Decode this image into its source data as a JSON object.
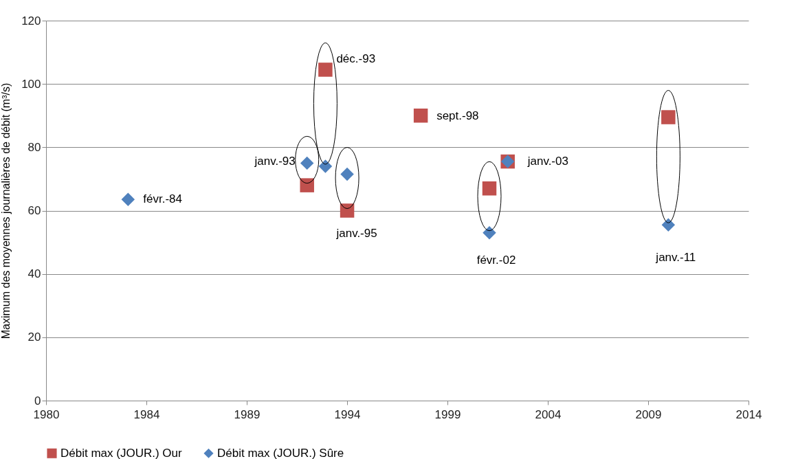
{
  "chart_data": {
    "type": "scatter",
    "ylabel": "Maximum des moyennes journalières de débit (m³/s)",
    "xlim": [
      "1980-01-01",
      "2014-12-30"
    ],
    "xticks": [
      {
        "value": "1980-01-01",
        "label": "1980"
      },
      {
        "value": "1984-12-31",
        "label": "1984"
      },
      {
        "value": "1989-12-31",
        "label": "1989"
      },
      {
        "value": "1994-12-31",
        "label": "1994"
      },
      {
        "value": "1999-12-31",
        "label": "1999"
      },
      {
        "value": "2004-12-30",
        "label": "2004"
      },
      {
        "value": "2009-12-30",
        "label": "2009"
      },
      {
        "value": "2014-12-30",
        "label": "2014"
      }
    ],
    "ylim": [
      0,
      120
    ],
    "yticks": [
      0,
      20,
      40,
      60,
      80,
      100,
      120
    ],
    "grid": "y",
    "legend": "bottom",
    "series": [
      {
        "name": "Débit max (JOUR.) Our",
        "color": "#c0504d",
        "marker": "square",
        "x": [
          "1993-01-01",
          "1993-12-01",
          "1995-01-01",
          "1998-09-01",
          "2002-02-01",
          "2003-01-01",
          "2011-01-01"
        ],
        "values": [
          68,
          104.5,
          60,
          90,
          67,
          75.5,
          89.5
        ]
      },
      {
        "name": "Débit max  (JOUR.) Sûre",
        "color": "#4f81bd",
        "marker": "diamond",
        "x": [
          "1984-02-01",
          "1993-01-01",
          "1993-12-01",
          "1995-01-01",
          "2002-02-01",
          "2003-01-01",
          "2011-01-01"
        ],
        "values": [
          63.5,
          75,
          74,
          71.5,
          53,
          75.5,
          55.5
        ]
      }
    ],
    "annotations": [
      {
        "text": "févr.-84",
        "x": "1984-02-01",
        "y": 63.5
      },
      {
        "text": "janv.-93",
        "x": "1993-01-01",
        "y": 75
      },
      {
        "text": "déc.-93",
        "x": "1993-12-01",
        "y": 104.5
      },
      {
        "text": "janv.-95",
        "x": "1995-01-01",
        "y": 60
      },
      {
        "text": "sept.-98",
        "x": "1998-09-01",
        "y": 90
      },
      {
        "text": "févr.-02",
        "x": "2002-02-01",
        "y": 53
      },
      {
        "text": "janv.-03",
        "x": "2003-01-01",
        "y": 75.5
      },
      {
        "text": "janv.-11",
        "x": "2011-01-01",
        "y": 55.5
      }
    ]
  }
}
